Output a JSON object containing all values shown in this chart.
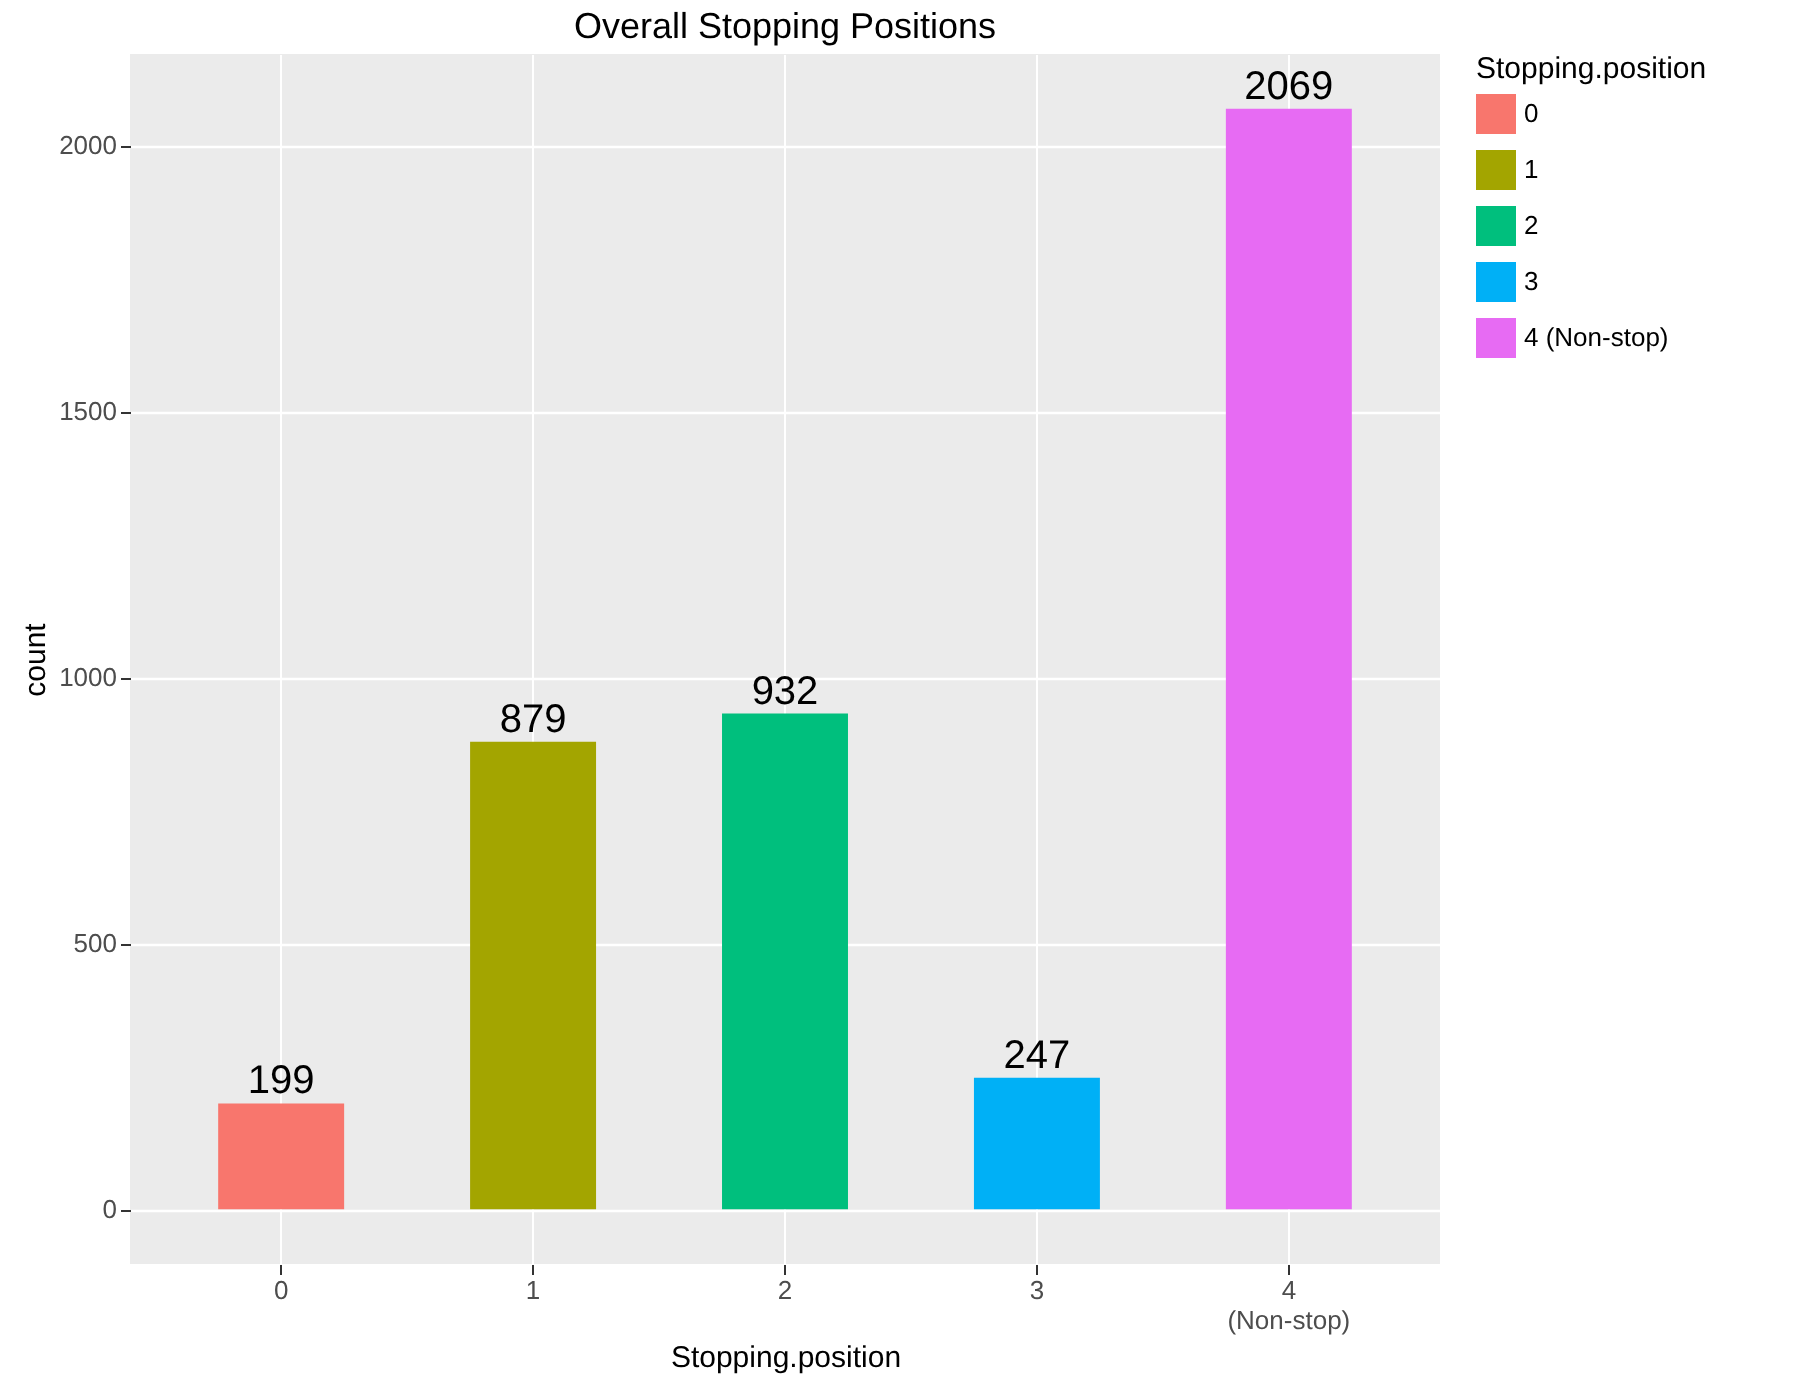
{
  "chart_data": {
    "type": "bar",
    "title": "Overall Stopping Positions",
    "xlabel": "Stopping.position",
    "ylabel": "count",
    "legend_title": "Stopping.position",
    "categories": [
      "0",
      "1",
      "2",
      "3",
      "4 (Non-stop)"
    ],
    "stacked": true,
    "series": [
      {
        "name": "0",
        "color": "#f8766d",
        "values": [
          199,
          null,
          null,
          null,
          null
        ]
      },
      {
        "name": "1",
        "color": "#a3a500",
        "values": [
          null,
          879,
          null,
          null,
          null
        ]
      },
      {
        "name": "2",
        "color": "#00bf7d",
        "values": [
          null,
          null,
          932,
          null,
          null
        ]
      },
      {
        "name": "3",
        "color": "#00b0f6",
        "values": [
          null,
          null,
          null,
          247,
          null
        ]
      },
      {
        "name": "4 (Non-stop)",
        "color": "#e76bf3",
        "values": [
          null,
          null,
          null,
          null,
          2069
        ]
      }
    ],
    "ylim": [
      -103,
      2172
    ],
    "yticks": [
      0,
      500,
      1000,
      1500,
      2000
    ],
    "grid": true,
    "legend": "right",
    "data_labels": true
  }
}
